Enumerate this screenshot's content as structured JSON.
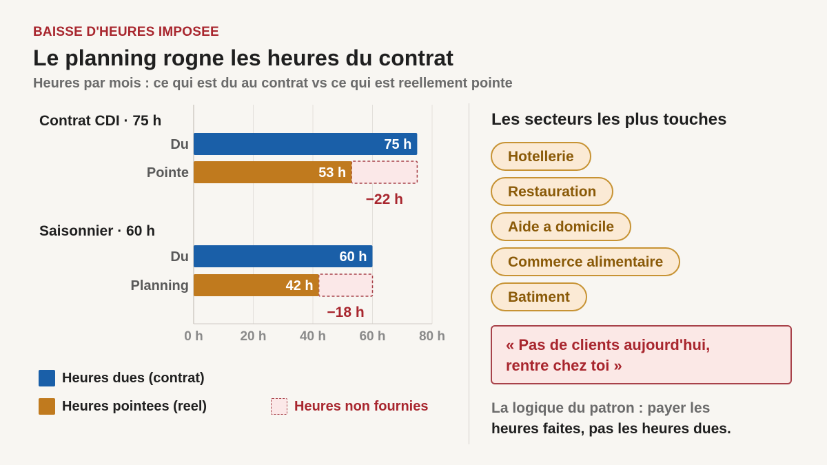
{
  "header": {
    "kicker": "BAISSE D'HEURES IMPOSEE",
    "title": "Le planning rogne les heures du contrat",
    "subtitle": "Heures par mois : ce qui est du au contrat vs ce qui est reellement pointe"
  },
  "chart_data": {
    "type": "bar",
    "orientation": "horizontal",
    "xlim": [
      0,
      80
    ],
    "ticks": [
      0,
      20,
      40,
      60,
      80
    ],
    "tick_labels": [
      "0 h",
      "20 h",
      "40 h",
      "60 h",
      "80 h"
    ],
    "grid": true,
    "unit": "h",
    "groups": [
      {
        "label": "Contrat CDI · 75 h",
        "rows": [
          {
            "label": "Du",
            "value": 75,
            "value_label": "75 h",
            "kind": "due"
          },
          {
            "label": "Pointe",
            "value": 53,
            "value_label": "53 h",
            "kind": "actual",
            "gap_to": 75,
            "gap_label": "−22 h"
          }
        ]
      },
      {
        "label": "Saisonnier · 60 h",
        "rows": [
          {
            "label": "Du",
            "value": 60,
            "value_label": "60 h",
            "kind": "due"
          },
          {
            "label": "Planning",
            "value": 42,
            "value_label": "42 h",
            "kind": "actual",
            "gap_to": 60,
            "gap_label": "−18 h"
          }
        ]
      }
    ],
    "legend": [
      {
        "label": "Heures dues (contrat)",
        "kind": "due"
      },
      {
        "label": "Heures pointees (reel)",
        "kind": "actual"
      },
      {
        "label": "Heures non fournies",
        "kind": "gap"
      }
    ],
    "legend_position": "bottom",
    "colors": {
      "due": "#1a5fa8",
      "actual": "#c07a1e",
      "gap_fill": "#fbe8e8",
      "gap_stroke": "#a8424a",
      "gap_text": "#a8262e",
      "grid": "#e3e0db"
    }
  },
  "sectors": {
    "title": "Les secteurs les plus touches",
    "items": [
      "Hotellerie",
      "Restauration",
      "Aide a domicile",
      "Commerce alimentaire",
      "Batiment"
    ]
  },
  "quote": {
    "line1": "« Pas de clients aujourd'hui,",
    "line2": "rentre chez toi »"
  },
  "note": {
    "line1": "La logique du patron : payer les",
    "line2": "heures faites, pas les heures dues."
  }
}
